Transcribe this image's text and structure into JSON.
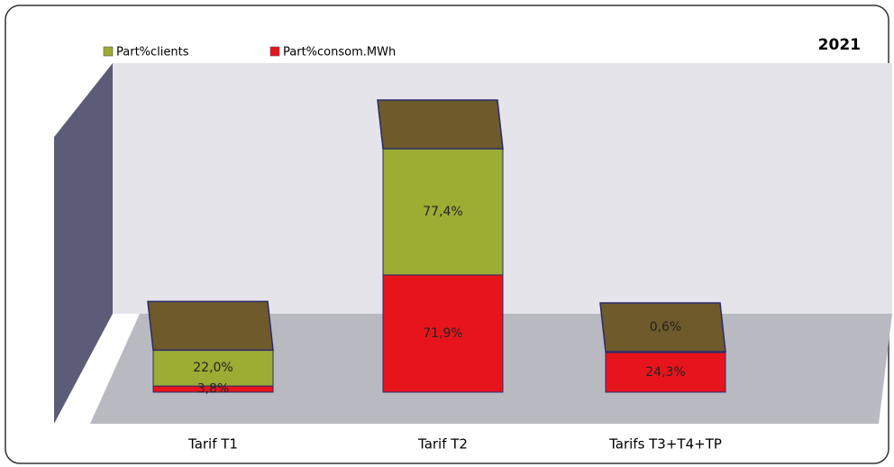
{
  "chart_data": {
    "type": "bar3d-stacked",
    "title": "2021",
    "categories": [
      "Tarif T1",
      "Tarif T2",
      "Tarifs T3+T4+TP"
    ],
    "series": [
      {
        "name": "Part%consom.MWh",
        "color": "#e8141c",
        "values": [
          3.8,
          71.9,
          24.3
        ],
        "value_labels": [
          "3,8%",
          "71,9%",
          "24,3%"
        ]
      },
      {
        "name": "Part%clients",
        "color": "#9cad33",
        "values": [
          22.0,
          77.4,
          0.6
        ],
        "value_labels": [
          "22,0%",
          "77,4%",
          "0,6%"
        ]
      }
    ],
    "legend": "top-left"
  }
}
